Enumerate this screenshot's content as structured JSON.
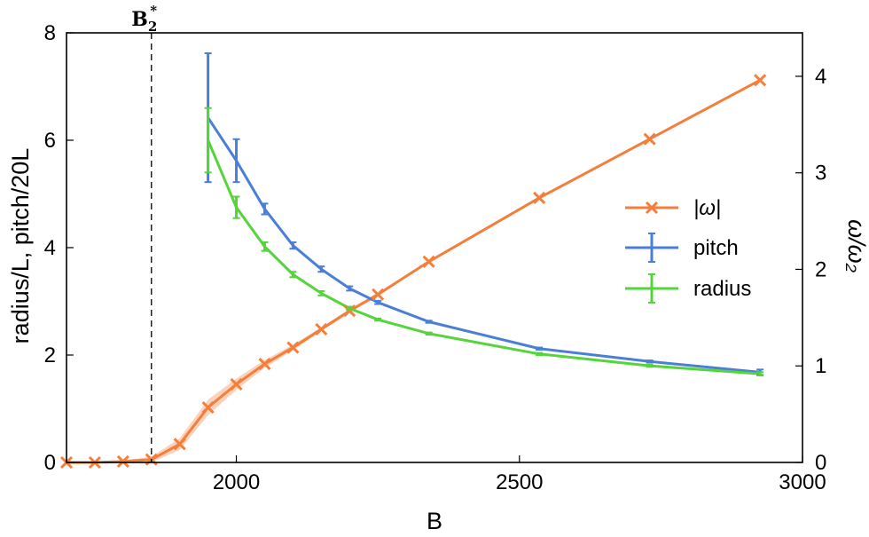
{
  "chart_data": {
    "type": "line",
    "title": "",
    "xlabel": "B",
    "ylabel_left": "radius/L, pitch/20L",
    "ylabel_right": "ω/ω₂",
    "xlim": [
      1700,
      3000
    ],
    "ylim_left": [
      0,
      8
    ],
    "ylim_right": [
      0,
      4.45
    ],
    "xticks": [
      2000,
      2500,
      3000
    ],
    "yticks_left": [
      0,
      2,
      4,
      6,
      8
    ],
    "yticks_right": [
      0,
      1,
      2,
      3,
      4
    ],
    "grid": false,
    "legend_position": "center-right",
    "vline": {
      "x": 1850,
      "label": "B",
      "label_sub": "2",
      "label_sup": "*",
      "style": "dashed"
    },
    "series": [
      {
        "name": "|ω|",
        "axis": "right",
        "color": "#f47f3b",
        "marker": "x",
        "x": [
          1700,
          1750,
          1800,
          1850,
          1900,
          1950,
          2000,
          2050,
          2100,
          2150,
          2200,
          2250,
          2340,
          2535,
          2730,
          2925
        ],
        "y": [
          0.0,
          0.0,
          0.01,
          0.03,
          0.19,
          0.57,
          0.81,
          1.02,
          1.19,
          1.38,
          1.57,
          1.74,
          2.08,
          2.74,
          3.35,
          3.96
        ],
        "band": [
          0.0,
          0.0,
          0.01,
          0.03,
          0.06,
          0.08,
          0.06,
          0.04,
          0.03,
          0.02,
          0.02,
          0.02,
          0.01,
          0.01,
          0.01,
          0.01
        ]
      },
      {
        "name": "pitch",
        "axis": "left",
        "color": "#4a7fd8",
        "x": [
          1950,
          2000,
          2050,
          2100,
          2150,
          2200,
          2250,
          2340,
          2535,
          2730,
          2925
        ],
        "y": [
          6.42,
          5.62,
          4.72,
          4.04,
          3.6,
          3.24,
          2.98,
          2.62,
          2.12,
          1.88,
          1.68
        ],
        "err": [
          1.2,
          0.4,
          0.1,
          0.06,
          0.05,
          0.04,
          0.03,
          0.02,
          0.02,
          0.02,
          0.05
        ]
      },
      {
        "name": "radius",
        "axis": "left",
        "color": "#55d43b",
        "x": [
          1950,
          2000,
          2050,
          2100,
          2150,
          2200,
          2250,
          2340,
          2535,
          2730,
          2925
        ],
        "y": [
          6.0,
          4.75,
          4.02,
          3.5,
          3.15,
          2.87,
          2.66,
          2.4,
          2.02,
          1.8,
          1.65
        ],
        "err": [
          0.6,
          0.2,
          0.08,
          0.05,
          0.04,
          0.03,
          0.02,
          0.02,
          0.02,
          0.02,
          0.03
        ]
      }
    ]
  }
}
